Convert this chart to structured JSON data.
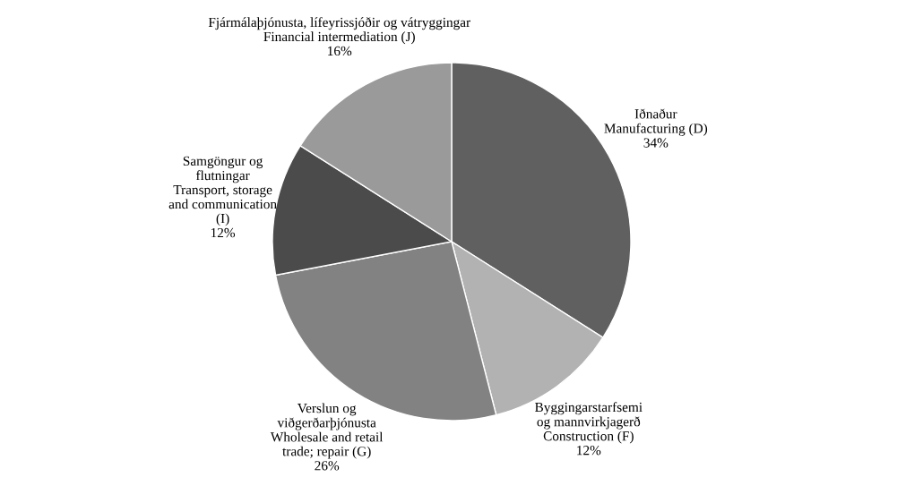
{
  "chart_data": {
    "type": "pie",
    "categories": [
      "Iðnaður\nManufacturing (D)",
      "Byggingarstarfsemi\nog mannvirkjagerð\nConstruction (F)",
      "Verslun og\nviðgerðarþjónusta\nWholesale and retail\ntrade; repair (G)",
      "Samgöngur og\nflutningar\nTransport, storage\nand communication\n(I)",
      "Fjármálaþjónusta, lífeyrissjóðir og vátryggingar\nFinancial intermediation (J)"
    ],
    "values": [
      34,
      12,
      26,
      12,
      16
    ],
    "value_labels": [
      "34%",
      "12%",
      "26%",
      "12%",
      "16%"
    ],
    "colors": [
      "#606060",
      "#b2b2b2",
      "#828282",
      "#4b4b4b",
      "#9a9a9a"
    ]
  }
}
